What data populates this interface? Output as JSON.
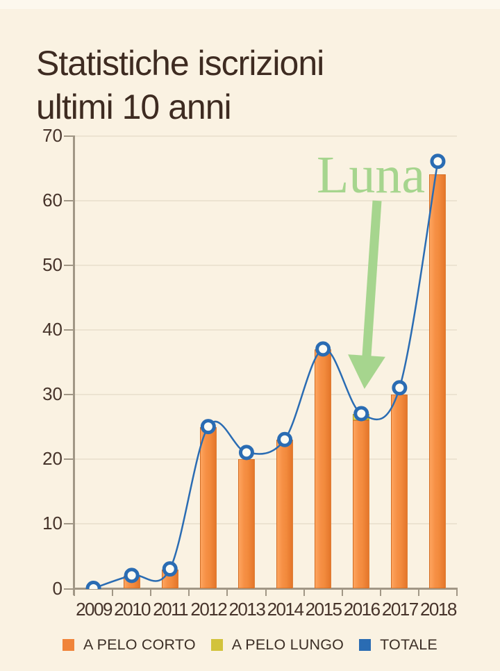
{
  "title": {
    "text": "Statistiche iscrizioni ultimi 10 anni",
    "color": "#3e2b21"
  },
  "annotation": {
    "text": "Luna",
    "color": "#a6d58e"
  },
  "chart_data": {
    "type": "bar+line",
    "title": "Statistiche iscrizioni ultimi 10 anni",
    "categories": [
      "2009",
      "2010",
      "2011",
      "2012",
      "2013",
      "2014",
      "2015",
      "2016",
      "2017",
      "2018"
    ],
    "series": [
      {
        "name": "A PELO CORTO",
        "type": "bar",
        "color": "#f0843a",
        "values": [
          0,
          2,
          3,
          25,
          20,
          23,
          37,
          26,
          30,
          64
        ]
      },
      {
        "name": "A PELO LUNGO",
        "type": "bar",
        "color": "#d2c33c",
        "values": [
          0,
          0,
          0,
          0,
          0,
          0,
          0,
          1,
          0,
          0
        ]
      },
      {
        "name": "TOTALE",
        "type": "line",
        "color": "#2a6cb3",
        "values": [
          0,
          2,
          3,
          25,
          21,
          23,
          37,
          27,
          31,
          66
        ]
      }
    ],
    "ylim": [
      0,
      70
    ],
    "yticks": [
      0,
      10,
      20,
      30,
      40,
      50,
      60,
      70
    ],
    "xlabel": "",
    "ylabel": "",
    "grid": "horizontal",
    "legend_position": "bottom-center",
    "marker_fill": "#fdfbf3",
    "grid_color": "#ece3d1",
    "axis_color": "#a19786",
    "tick_label_color": "#46332a"
  }
}
